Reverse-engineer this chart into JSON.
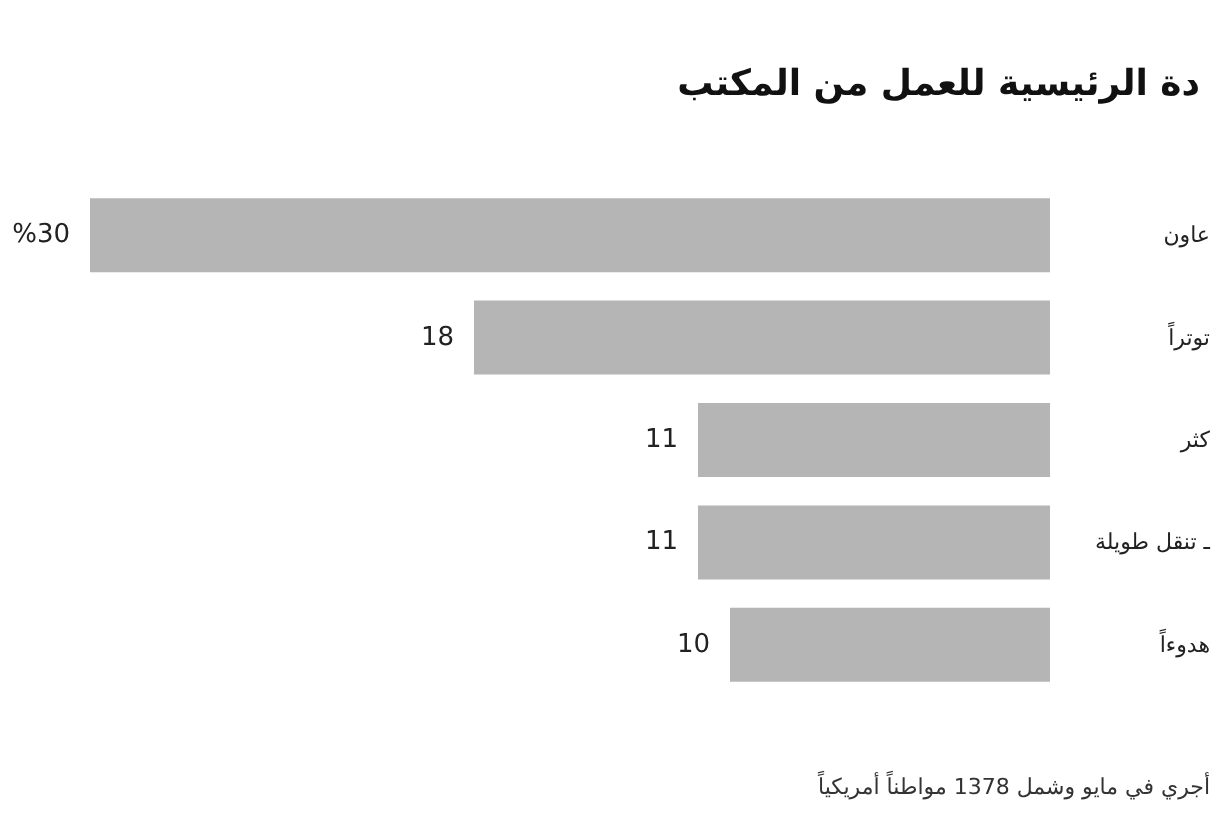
{
  "chart_data": {
    "type": "bar",
    "orientation": "horizontal",
    "title": "دة الرئيسية للعمل من المكتب",
    "categories": [
      "عاون",
      "توتراً",
      "كثر",
      "ـ تنقل طويلة",
      "هدوءاً"
    ],
    "values": [
      30,
      18,
      11,
      11,
      10
    ],
    "value_labels": [
      "%30",
      "18",
      "11",
      "11",
      "10"
    ],
    "color": "#b5b5b5",
    "xlim": [
      30,
      0
    ],
    "annotations": [
      "أجري في مايو وشمل 1378 مواطناً أمريكياً"
    ]
  }
}
